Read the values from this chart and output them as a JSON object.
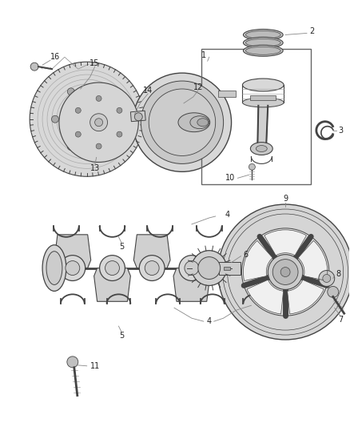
{
  "bg_color": "#ffffff",
  "line_color": "#444444",
  "dark_gray": "#333333",
  "mid_gray": "#888888",
  "light_gray": "#cccccc",
  "lighter_gray": "#e0e0e0",
  "label_fontsize": 7.0,
  "fig_width": 4.38,
  "fig_height": 5.33,
  "dpi": 100
}
